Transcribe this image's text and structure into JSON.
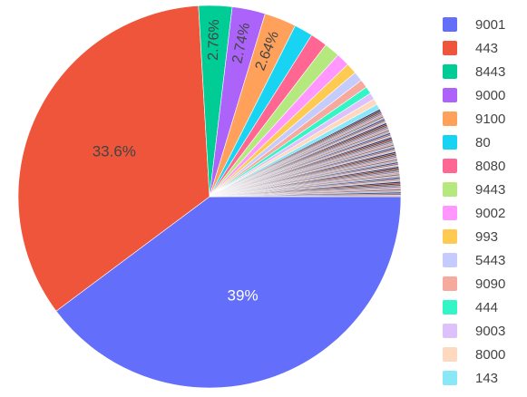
{
  "chart_data": {
    "type": "pie",
    "title": "",
    "slices": [
      {
        "label": "9001",
        "value": 39.0,
        "color": "#636efa",
        "text": "39%",
        "text_color": "#ffffff"
      },
      {
        "label": "443",
        "value": 33.6,
        "color": "#ef553b",
        "text": "33.6%",
        "text_color": "#444444"
      },
      {
        "label": "8443",
        "value": 2.76,
        "color": "#00cc96",
        "text": "2.76%",
        "text_color": "#444444"
      },
      {
        "label": "9000",
        "value": 2.74,
        "color": "#ab63fa",
        "text": "2.74%",
        "text_color": "#444444"
      },
      {
        "label": "9100",
        "value": 2.64,
        "color": "#ffa15a",
        "text": "2.64%",
        "text_color": "#444444"
      },
      {
        "label": "80",
        "value": 1.55,
        "color": "#19d3f3",
        "text": "",
        "text_color": "#444444"
      },
      {
        "label": "8080",
        "value": 1.4,
        "color": "#ff6692",
        "text": "",
        "text_color": "#444444"
      },
      {
        "label": "9443",
        "value": 1.3,
        "color": "#b6e880",
        "text": "",
        "text_color": "#444444"
      },
      {
        "label": "9002",
        "value": 1.1,
        "color": "#ff97ff",
        "text": "",
        "text_color": "#444444"
      },
      {
        "label": "993",
        "value": 0.9,
        "color": "#fecb52",
        "text": "",
        "text_color": "#444444"
      },
      {
        "label": "5443",
        "value": 0.8,
        "color": "#c6cbfd",
        "text": "",
        "text_color": "#444444"
      },
      {
        "label": "9090",
        "value": 0.7,
        "color": "#f6aa9d",
        "text": "",
        "text_color": "#444444"
      },
      {
        "label": "444",
        "value": 0.6,
        "color": "#33f5c5",
        "text": "",
        "text_color": "#444444"
      },
      {
        "label": "9003",
        "value": 0.55,
        "color": "#ddc1fd",
        "text": "",
        "text_color": "#444444"
      },
      {
        "label": "8000",
        "value": 0.5,
        "color": "#ffd9bd",
        "text": "",
        "text_color": "#444444"
      },
      {
        "label": "143",
        "value": 0.45,
        "color": "#8ae7f8",
        "text": "",
        "text_color": "#444444"
      }
    ],
    "other_slices": {
      "count": 60,
      "total_value": 7.41,
      "colors": [
        "#2a2f6e",
        "#7a3320",
        "#6a6a6a",
        "#9b7fb0",
        "#c7a6a6",
        "#8f6f6f",
        "#b4b4c8",
        "#3d4f8a",
        "#a67272",
        "#d1c1c1"
      ]
    },
    "legend_placement": "right"
  }
}
